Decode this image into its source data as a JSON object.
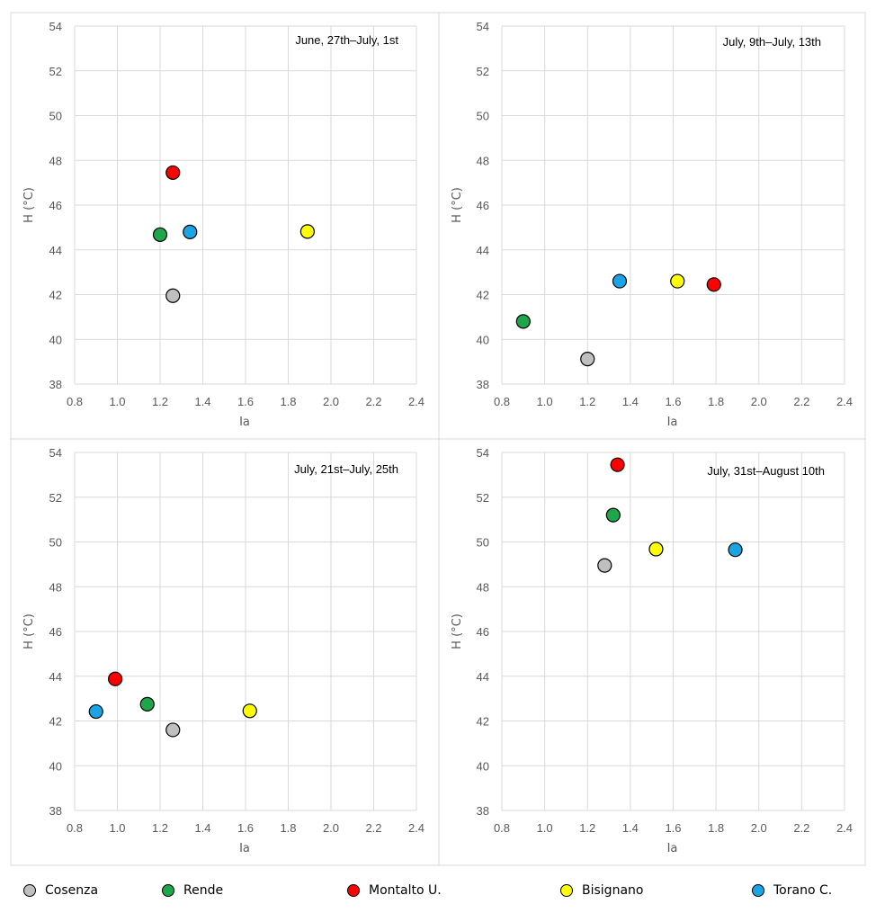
{
  "legend": [
    {
      "name": "Cosenza",
      "color": "#bfbfbf"
    },
    {
      "name": "Rende",
      "color": "#1ea64b"
    },
    {
      "name": "Montalto U.",
      "color": "#ff0000"
    },
    {
      "name": "Bisignano",
      "color": "#ffff00"
    },
    {
      "name": "Torano C.",
      "color": "#1ba4e4"
    }
  ],
  "chart_data": [
    {
      "type": "scatter",
      "title": "June, 27th–July, 1st",
      "xlabel": "Ia",
      "ylabel": "H (°C)",
      "xlim": [
        0.8,
        2.4
      ],
      "ylim": [
        38,
        54
      ],
      "xticks": [
        "0.8",
        "1.0",
        "1.2",
        "1.4",
        "1.6",
        "1.8",
        "2.0",
        "2.2",
        "2.4"
      ],
      "yticks": [
        "38",
        "40",
        "42",
        "44",
        "46",
        "48",
        "50",
        "52",
        "54"
      ],
      "grid": true,
      "points": [
        {
          "series": "Cosenza",
          "x": 1.26,
          "y": 41.95
        },
        {
          "series": "Rende",
          "x": 1.2,
          "y": 44.68
        },
        {
          "series": "Montalto U.",
          "x": 1.26,
          "y": 47.45
        },
        {
          "series": "Bisignano",
          "x": 1.89,
          "y": 44.82
        },
        {
          "series": "Torano C.",
          "x": 1.34,
          "y": 44.8
        }
      ]
    },
    {
      "type": "scatter",
      "title": "July, 9th–July, 13th",
      "xlabel": "Ia",
      "ylabel": "H (°C)",
      "xlim": [
        0.8,
        2.4
      ],
      "ylim": [
        38,
        54
      ],
      "xticks": [
        "0.8",
        "1.0",
        "1.2",
        "1.4",
        "1.6",
        "1.8",
        "2.0",
        "2.2",
        "2.4"
      ],
      "yticks": [
        "38",
        "40",
        "42",
        "44",
        "46",
        "48",
        "50",
        "52",
        "54"
      ],
      "grid": true,
      "points": [
        {
          "series": "Cosenza",
          "x": 1.2,
          "y": 39.12
        },
        {
          "series": "Rende",
          "x": 0.9,
          "y": 40.8
        },
        {
          "series": "Montalto U.",
          "x": 1.79,
          "y": 42.45
        },
        {
          "series": "Bisignano",
          "x": 1.62,
          "y": 42.6
        },
        {
          "series": "Torano C.",
          "x": 1.35,
          "y": 42.6
        }
      ]
    },
    {
      "type": "scatter",
      "title": "July, 21st–July, 25th",
      "xlabel": "Ia",
      "ylabel": "H (°C)",
      "xlim": [
        0.8,
        2.4
      ],
      "ylim": [
        38,
        54
      ],
      "xticks": [
        "0.8",
        "1.0",
        "1.2",
        "1.4",
        "1.6",
        "1.8",
        "2.0",
        "2.2",
        "2.4"
      ],
      "yticks": [
        "38",
        "40",
        "42",
        "44",
        "46",
        "48",
        "50",
        "52",
        "54"
      ],
      "grid": true,
      "points": [
        {
          "series": "Cosenza",
          "x": 1.26,
          "y": 41.6
        },
        {
          "series": "Rende",
          "x": 1.14,
          "y": 42.75
        },
        {
          "series": "Montalto U.",
          "x": 0.99,
          "y": 43.88
        },
        {
          "series": "Bisignano",
          "x": 1.62,
          "y": 42.45
        },
        {
          "series": "Torano C.",
          "x": 0.9,
          "y": 42.42
        }
      ]
    },
    {
      "type": "scatter",
      "title": "July, 31st–August 10th",
      "xlabel": "Ia",
      "ylabel": "H (°C)",
      "xlim": [
        0.8,
        2.4
      ],
      "ylim": [
        38,
        54
      ],
      "xticks": [
        "0.8",
        "1.0",
        "1.2",
        "1.4",
        "1.6",
        "1.8",
        "2.0",
        "2.2",
        "2.4"
      ],
      "yticks": [
        "38",
        "40",
        "42",
        "44",
        "46",
        "48",
        "50",
        "52",
        "54"
      ],
      "grid": true,
      "points": [
        {
          "series": "Cosenza",
          "x": 1.28,
          "y": 48.95
        },
        {
          "series": "Rende",
          "x": 1.32,
          "y": 51.2
        },
        {
          "series": "Montalto U.",
          "x": 1.34,
          "y": 53.45
        },
        {
          "series": "Bisignano",
          "x": 1.52,
          "y": 49.68
        },
        {
          "series": "Torano C.",
          "x": 1.89,
          "y": 49.65
        }
      ]
    }
  ]
}
